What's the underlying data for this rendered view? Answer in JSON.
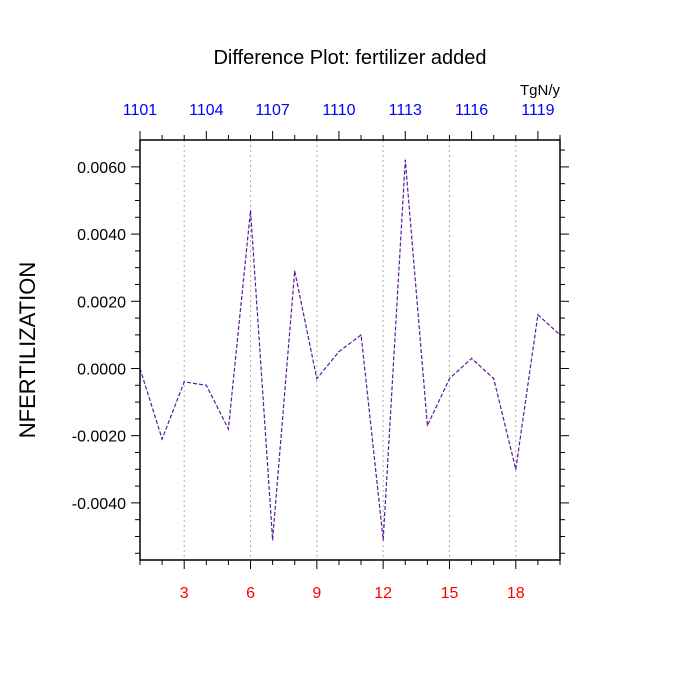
{
  "chart_data": {
    "type": "line",
    "title": "Difference Plot: fertilizer added",
    "units": "TgN/y",
    "ylabel": "NFERTILIZATION",
    "xlabel": "",
    "x": [
      1,
      2,
      3,
      4,
      5,
      6,
      7,
      8,
      9,
      10,
      11,
      12,
      13,
      14,
      15,
      16,
      17,
      18,
      19,
      20
    ],
    "y": [
      0.0,
      -0.0021,
      -0.0004,
      -0.0005,
      -0.0018,
      0.0047,
      -0.0051,
      0.0029,
      -0.0003,
      0.0005,
      0.001,
      -0.0051,
      0.0062,
      -0.0017,
      -0.0003,
      0.0003,
      -0.0003,
      -0.003,
      0.0016,
      0.001
    ],
    "xlim": [
      1,
      20
    ],
    "ylim": [
      -0.0057,
      0.0068
    ],
    "bottom_ticks": [
      3,
      6,
      9,
      12,
      15,
      18
    ],
    "bottom_tick_labels": [
      "3",
      "6",
      "9",
      "12",
      "15",
      "18"
    ],
    "top_tick_labels": [
      "1101",
      "1104",
      "1107",
      "1110",
      "1113",
      "1116",
      "1119"
    ],
    "top_ticks_at": [
      1,
      4,
      7,
      10,
      13,
      16,
      19
    ],
    "y_ticks": [
      0.006,
      0.004,
      0.002,
      0.0,
      -0.002,
      -0.004
    ],
    "y_tick_labels": [
      "0.0060",
      "0.0040",
      "0.0020",
      "0.0000",
      "-0.0020",
      "-0.0040"
    ],
    "grid": "vertical-dotted",
    "colors": {
      "line": "#5a1aa0",
      "bottom_axis": "#ff0000",
      "top_axis": "#0000ff",
      "frame": "#000000",
      "grid": "#aaaaaa"
    }
  }
}
